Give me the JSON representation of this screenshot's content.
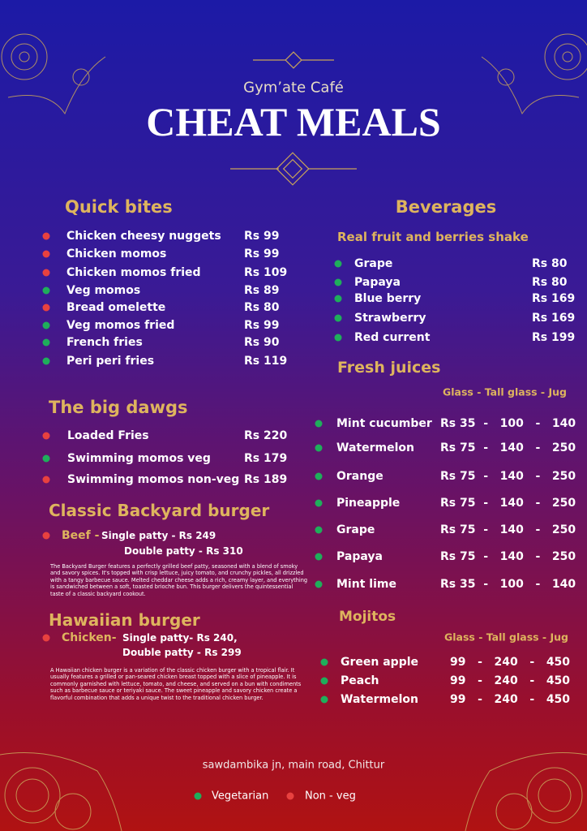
{
  "header": {
    "subtitle": "Gym’ate Café",
    "title": "CHEAT MEALS"
  },
  "quick_bites": {
    "title": "Quick bites",
    "items": [
      {
        "name": "Chicken cheesy nuggets",
        "price": "Rs 99",
        "veg": false
      },
      {
        "name": "Chicken momos",
        "price": "Rs 99",
        "veg": false
      },
      {
        "name": "Chicken momos fried",
        "price": "Rs 109",
        "veg": false
      },
      {
        "name": "Veg momos",
        "price": "Rs 89",
        "veg": true
      },
      {
        "name": "Bread omelette",
        "price": "Rs 80",
        "veg": false
      },
      {
        "name": "Veg momos fried",
        "price": "Rs 99",
        "veg": true
      },
      {
        "name": "French fries",
        "price": "Rs 90",
        "veg": true
      },
      {
        "name": "Peri peri fries",
        "price": "Rs 119",
        "veg": true
      }
    ]
  },
  "big_dawgs": {
    "title": "The big dawgs",
    "items": [
      {
        "name": "Loaded Fries",
        "price": "Rs 220",
        "veg": false
      },
      {
        "name": "Swimming momos veg",
        "price": "Rs 179",
        "veg": true
      },
      {
        "name": "Swimming momos non-veg",
        "price": "Rs 189",
        "veg": false
      }
    ]
  },
  "backyard_burger": {
    "title": "Classic Backyard burger",
    "variant": "Beef -",
    "veg": false,
    "single": "Single patty - Rs 249",
    "double": "Double patty - Rs 310",
    "description": "The Backyard Burger features a perfectly grilled beef patty, seasoned with a blend of smoky and savory spices. It's topped with crisp lettuce, juicy tomato, and crunchy pickles, all drizzled with a tangy barbecue sauce. Melted cheddar cheese adds a rich, creamy layer, and everything is sandwiched between a soft, toasted brioche bun. This burger delivers the quintessential taste of a classic backyard cookout."
  },
  "hawaiian_burger": {
    "title": "Hawaiian burger",
    "variant": "Chicken-",
    "veg": false,
    "single": "Single patty- Rs 240,",
    "double": "Double patty - Rs 299",
    "description": "A Hawaiian chicken burger is a variation of the classic chicken burger with a tropical flair. It usually features a grilled or pan-seared chicken breast topped with a slice of pineapple. It is commonly garnished with lettuce, tomato, and cheese, and served on a bun with condiments such as barbecue sauce or teriyaki sauce. The sweet pineapple and savory chicken create a flavorful combination that adds a unique twist to the traditional chicken burger."
  },
  "beverages": {
    "title": "Beverages",
    "subtitle": "Real fruit and berries shake",
    "items": [
      {
        "name": "Grape",
        "price": "Rs 80",
        "veg": true
      },
      {
        "name": "Papaya",
        "price": "Rs 80",
        "veg": true
      },
      {
        "name": "Blue berry",
        "price": "Rs 169",
        "veg": true
      },
      {
        "name": "Strawberry",
        "price": "Rs 169",
        "veg": true
      },
      {
        "name": "Red current",
        "price": "Rs 199",
        "veg": true
      }
    ]
  },
  "fresh_juices": {
    "title": "Fresh juices",
    "sizes": "Glass - Tall glass - Jug",
    "items": [
      {
        "name": "Mint cucumber",
        "price": "Rs 35  -   100   -   140",
        "veg": true
      },
      {
        "name": "Watermelon",
        "price": "Rs 75  -   140   -   250",
        "veg": true
      },
      {
        "name": "Orange",
        "price": "Rs 75  -   140   -   250",
        "veg": true
      },
      {
        "name": "Pineapple",
        "price": "Rs 75  -   140   -   250",
        "veg": true
      },
      {
        "name": "Grape",
        "price": "Rs 75  -   140   -   250",
        "veg": true
      },
      {
        "name": "Papaya",
        "price": "Rs 75  -   140   -   250",
        "veg": true
      },
      {
        "name": "Mint lime",
        "price": "Rs 35  -   100   -   140",
        "veg": true
      }
    ]
  },
  "mojitos": {
    "title": "Mojitos",
    "sizes": "Glass - Tall glass - Jug",
    "items": [
      {
        "name": "Green apple",
        "price": "99   -   240   -   450",
        "veg": true
      },
      {
        "name": "Peach",
        "price": "99   -   240   -   450",
        "veg": true
      },
      {
        "name": "Watermelon",
        "price": "99   -   240   -   450",
        "veg": true
      }
    ]
  },
  "footer": {
    "address": "sawdambika jn, main road, Chittur",
    "legend": {
      "veg": "Vegetarian",
      "nonveg": "Non - veg"
    }
  }
}
